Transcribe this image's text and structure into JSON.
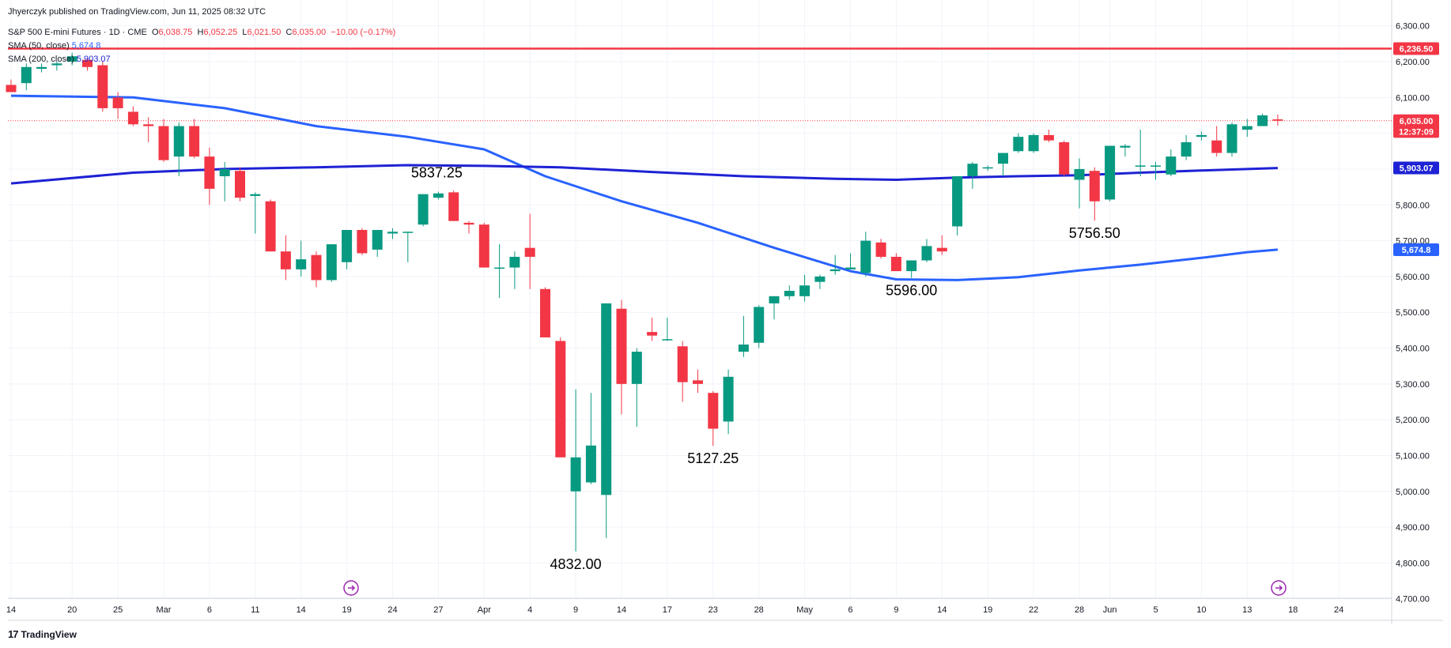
{
  "publisher": "Jhyerczyk published on TradingView.com, Jun 11, 2025 08:32 UTC",
  "legend": {
    "symbol": "S&P 500 E-mini Futures · 1D · CME",
    "o_label": "O",
    "o": "6,038.75",
    "h_label": "H",
    "h": "6,052.25",
    "l_label": "L",
    "l": "6,021.50",
    "c_label": "C",
    "c": "6,035.00",
    "chg": "−10.00 (−0.17%)",
    "sma50_label": "SMA (50, close)",
    "sma50_value": "5,674.8",
    "sma200_label": "SMA (200, close)",
    "sma200_value": "5,903.07"
  },
  "brand": "TradingView",
  "colors": {
    "up": "#089981",
    "down": "#f23645",
    "sma50": "#2962ff",
    "sma200": "#1e22d4",
    "resistance": "#f23645"
  },
  "chart_data": {
    "type": "candlestick",
    "y_ticks": [
      "6,300.00",
      "6,200.00",
      "6,100.00",
      "6,000.00",
      "5,900.00",
      "5,800.00",
      "5,700.00",
      "5,600.00",
      "5,500.00",
      "5,400.00",
      "5,300.00",
      "5,200.00",
      "5,100.00",
      "5,000.00",
      "4,900.00",
      "4,800.00",
      "4,700.00"
    ],
    "ylim": [
      4695,
      6328
    ],
    "x_ticks": [
      {
        "label": "14",
        "i": 0
      },
      {
        "label": "20",
        "i": 4
      },
      {
        "label": "25",
        "i": 7
      },
      {
        "label": "Mar",
        "i": 10
      },
      {
        "label": "6",
        "i": 13
      },
      {
        "label": "11",
        "i": 16
      },
      {
        "label": "14",
        "i": 19
      },
      {
        "label": "19",
        "i": 22
      },
      {
        "label": "24",
        "i": 25
      },
      {
        "label": "27",
        "i": 28
      },
      {
        "label": "Apr",
        "i": 31
      },
      {
        "label": "4",
        "i": 34
      },
      {
        "label": "9",
        "i": 37
      },
      {
        "label": "14",
        "i": 40
      },
      {
        "label": "17",
        "i": 43
      },
      {
        "label": "23",
        "i": 46
      },
      {
        "label": "28",
        "i": 49
      },
      {
        "label": "May",
        "i": 52
      },
      {
        "label": "6",
        "i": 55
      },
      {
        "label": "9",
        "i": 58
      },
      {
        "label": "14",
        "i": 61
      },
      {
        "label": "19",
        "i": 64
      },
      {
        "label": "22",
        "i": 67
      },
      {
        "label": "28",
        "i": 70
      },
      {
        "label": "Jun",
        "i": 72
      },
      {
        "label": "5",
        "i": 75
      },
      {
        "label": "10",
        "i": 78
      },
      {
        "label": "13",
        "i": 81
      },
      {
        "label": "18",
        "i": 84
      },
      {
        "label": "24",
        "i": 87
      }
    ],
    "candles": [
      [
        6135,
        6150,
        6120,
        6115
      ],
      [
        6140,
        6195,
        6120,
        6185
      ],
      [
        6180,
        6195,
        6170,
        6185
      ],
      [
        6190,
        6200,
        6175,
        6195
      ],
      [
        6200,
        6225,
        6190,
        6215
      ],
      [
        6205,
        6210,
        6175,
        6185
      ],
      [
        6190,
        6200,
        6060,
        6070
      ],
      [
        6100,
        6115,
        6040,
        6070
      ],
      [
        6060,
        6075,
        6020,
        6025
      ],
      [
        6025,
        6045,
        5975,
        6020
      ],
      [
        6020,
        6040,
        5920,
        5925
      ],
      [
        5935,
        6030,
        5880,
        6020
      ],
      [
        6020,
        6040,
        5930,
        5935
      ],
      [
        5935,
        5960,
        5800,
        5845
      ],
      [
        5880,
        5920,
        5810,
        5900
      ],
      [
        5895,
        5905,
        5810,
        5820
      ],
      [
        5825,
        5835,
        5720,
        5830
      ],
      [
        5810,
        5815,
        5670,
        5670
      ],
      [
        5670,
        5715,
        5590,
        5620
      ],
      [
        5620,
        5700,
        5600,
        5648
      ],
      [
        5660,
        5670,
        5570,
        5590
      ],
      [
        5590,
        5690,
        5585,
        5690
      ],
      [
        5640,
        5730,
        5620,
        5730
      ],
      [
        5730,
        5735,
        5660,
        5665
      ],
      [
        5675,
        5725,
        5655,
        5730
      ],
      [
        5720,
        5735,
        5705,
        5725
      ],
      [
        5725,
        5725,
        5640,
        5725
      ],
      [
        5745,
        5830,
        5740,
        5830
      ],
      [
        5820,
        5837,
        5815,
        5832
      ],
      [
        5835,
        5840,
        5755,
        5755
      ],
      [
        5750,
        5755,
        5720,
        5745
      ],
      [
        5745,
        5750,
        5640,
        5625
      ],
      [
        5625,
        5690,
        5540,
        5625
      ],
      [
        5625,
        5670,
        5565,
        5655
      ],
      [
        5680,
        5775,
        5565,
        5655
      ],
      [
        5565,
        5570,
        5430,
        5430
      ],
      [
        5420,
        5430,
        5095,
        5095
      ],
      [
        5000,
        5285,
        4832,
        5095
      ],
      [
        5025,
        5275,
        5020,
        5128
      ],
      [
        4990,
        5525,
        4870,
        5525
      ],
      [
        5510,
        5535,
        5215,
        5300
      ],
      [
        5300,
        5400,
        5180,
        5390
      ],
      [
        5445,
        5485,
        5420,
        5435
      ],
      [
        5425,
        5485,
        5420,
        5425
      ],
      [
        5405,
        5420,
        5250,
        5305
      ],
      [
        5310,
        5340,
        5275,
        5300
      ],
      [
        5275,
        5280,
        5127,
        5175
      ],
      [
        5195,
        5340,
        5160,
        5320
      ],
      [
        5390,
        5490,
        5375,
        5410
      ],
      [
        5415,
        5520,
        5400,
        5515
      ],
      [
        5525,
        5545,
        5480,
        5545
      ],
      [
        5545,
        5575,
        5535,
        5560
      ],
      [
        5545,
        5605,
        5530,
        5575
      ],
      [
        5585,
        5605,
        5565,
        5600
      ],
      [
        5615,
        5660,
        5605,
        5620
      ],
      [
        5620,
        5665,
        5620,
        5625
      ],
      [
        5610,
        5725,
        5600,
        5700
      ],
      [
        5695,
        5705,
        5650,
        5655
      ],
      [
        5655,
        5665,
        5620,
        5615
      ],
      [
        5615,
        5630,
        5596,
        5645
      ],
      [
        5645,
        5705,
        5640,
        5685
      ],
      [
        5680,
        5715,
        5660,
        5670
      ],
      [
        5740,
        5875,
        5715,
        5880
      ],
      [
        5880,
        5920,
        5845,
        5915
      ],
      [
        5905,
        5910,
        5895,
        5905
      ],
      [
        5915,
        5940,
        5880,
        5945
      ],
      [
        5950,
        6000,
        5945,
        5990
      ],
      [
        5950,
        6000,
        5945,
        5995
      ],
      [
        5995,
        6010,
        5975,
        5980
      ],
      [
        5975,
        5980,
        5880,
        5885
      ],
      [
        5870,
        5930,
        5790,
        5900
      ],
      [
        5895,
        5905,
        5756,
        5810
      ],
      [
        5815,
        5960,
        5810,
        5965
      ],
      [
        5960,
        5970,
        5935,
        5965
      ],
      [
        5910,
        6010,
        5880,
        5910
      ],
      [
        5910,
        5920,
        5870,
        5910
      ],
      [
        5885,
        5955,
        5880,
        5935
      ],
      [
        5935,
        5995,
        5925,
        5975
      ],
      [
        5990,
        6005,
        5980,
        5995
      ],
      [
        5980,
        6020,
        5935,
        5945
      ],
      [
        5945,
        6030,
        5935,
        6025
      ],
      [
        6010,
        6040,
        5990,
        6020
      ],
      [
        6020,
        6055,
        6020,
        6050
      ],
      [
        6038.75,
        6052.25,
        6021.5,
        6035
      ]
    ],
    "sma50": [
      [
        0,
        6105
      ],
      [
        8,
        6100
      ],
      [
        14,
        6070
      ],
      [
        20,
        6020
      ],
      [
        26,
        5990
      ],
      [
        31,
        5955
      ],
      [
        35,
        5880
      ],
      [
        40,
        5810
      ],
      [
        45,
        5750
      ],
      [
        50,
        5680
      ],
      [
        55,
        5615
      ],
      [
        58,
        5592
      ],
      [
        62,
        5590
      ],
      [
        66,
        5598
      ],
      [
        70,
        5617
      ],
      [
        74,
        5633
      ],
      [
        78,
        5652
      ],
      [
        81,
        5668
      ],
      [
        83,
        5675
      ]
    ],
    "sma200": [
      [
        0,
        5860
      ],
      [
        8,
        5890
      ],
      [
        14,
        5900
      ],
      [
        20,
        5905
      ],
      [
        26,
        5911
      ],
      [
        31,
        5909
      ],
      [
        36,
        5905
      ],
      [
        42,
        5892
      ],
      [
        48,
        5880
      ],
      [
        54,
        5873
      ],
      [
        58,
        5870
      ],
      [
        62,
        5876
      ],
      [
        66,
        5880
      ],
      [
        70,
        5883
      ],
      [
        74,
        5890
      ],
      [
        78,
        5896
      ],
      [
        83,
        5903
      ]
    ],
    "resistance": 6236.5,
    "price_labels": [
      {
        "text": "6,236.50",
        "value": 6236.5,
        "color": "#f23645"
      },
      {
        "text": "6,035.00",
        "value": 6035,
        "color": "#f23645"
      },
      {
        "text": "12:37:09",
        "value": 6005,
        "color": "#f23645"
      },
      {
        "text": "5,903.07",
        "value": 5903.07,
        "color": "#1e22d4"
      },
      {
        "text": "5,674.8",
        "value": 5674.8,
        "color": "#2962ff"
      }
    ],
    "annotations": [
      {
        "text": "5837.25",
        "i": 28,
        "value": 5837.25,
        "pos": "above"
      },
      {
        "text": "4832.00",
        "i": 37,
        "value": 4832,
        "pos": "below"
      },
      {
        "text": "5127.25",
        "i": 46,
        "value": 5127.25,
        "pos": "below"
      },
      {
        "text": "5596.00",
        "i": 59,
        "value": 5596,
        "pos": "below"
      },
      {
        "text": "5756.50",
        "i": 71,
        "value": 5756.5,
        "pos": "below"
      }
    ]
  }
}
